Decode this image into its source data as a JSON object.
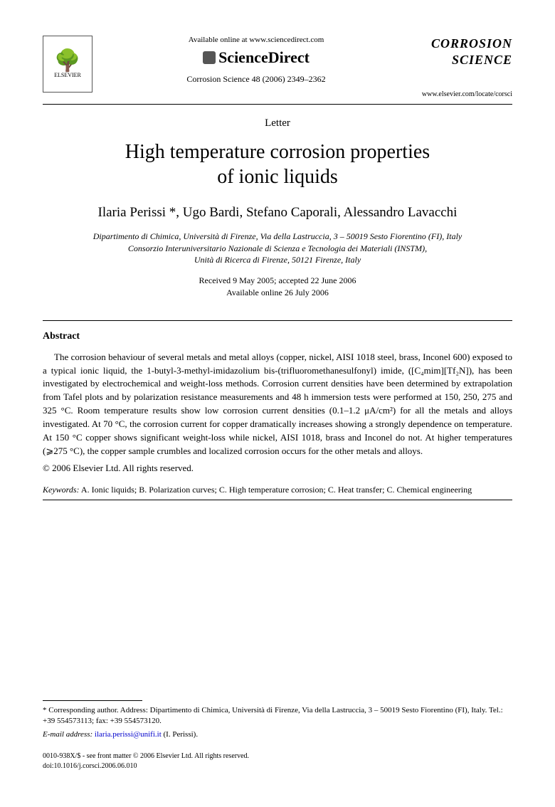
{
  "header": {
    "available_online": "Available online at www.sciencedirect.com",
    "sciencedirect": "ScienceDirect",
    "elsevier_label": "ELSEVIER",
    "journal_ref": "Corrosion Science 48 (2006) 2349–2362",
    "journal_title_line1": "CORROSION",
    "journal_title_line2": "SCIENCE",
    "journal_url": "www.elsevier.com/locate/corsci"
  },
  "article": {
    "type": "Letter",
    "title_line1": "High temperature corrosion properties",
    "title_line2": "of ionic liquids",
    "authors": "Ilaria Perissi *, Ugo Bardi, Stefano Caporali, Alessandro Lavacchi",
    "affiliation_line1": "Dipartimento di Chimica, Università di Firenze, Via della Lastruccia, 3 – 50019 Sesto Fiorentino (FI), Italy",
    "affiliation_line2": "Consorzio Interuniversitario Nazionale di Scienza e Tecnologia dei Materiali (INSTM),",
    "affiliation_line3": "Unità di Ricerca di Firenze, 50121 Firenze, Italy",
    "received": "Received 9 May 2005; accepted 22 June 2006",
    "available": "Available online 26 July 2006"
  },
  "abstract": {
    "heading": "Abstract",
    "text": "The corrosion behaviour of several metals and metal alloys (copper, nickel, AISI 1018 steel, brass, Inconel 600) exposed to a typical ionic liquid, the 1-butyl-3-methyl-imidazolium bis-(trifluoromethanesulfonyl) imide, ([C₄mim][Tf₂N]), has been investigated by electrochemical and weight-loss methods. Corrosion current densities have been determined by extrapolation from Tafel plots and by polarization resistance measurements and 48 h immersion tests were performed at 150, 250, 275 and 325 °C. Room temperature results show low corrosion current densities (0.1–1.2 μA/cm²) for all the metals and alloys investigated. At 70 °C, the corrosion current for copper dramatically increases showing a strongly dependence on temperature. At 150 °C copper shows significant weight-loss while nickel, AISI 1018, brass and Inconel do not. At higher temperatures (⩾275 °C), the copper sample crumbles and localized corrosion occurs for the other metals and alloys.",
    "copyright": "© 2006 Elsevier Ltd. All rights reserved."
  },
  "keywords": {
    "label": "Keywords:",
    "text": "A. Ionic liquids; B. Polarization curves; C. High temperature corrosion; C. Heat transfer; C. Chemical engineering"
  },
  "footnote": {
    "corresponding": "* Corresponding author. Address: Dipartimento di Chimica, Università di Firenze, Via della Lastruccia, 3 – 50019 Sesto Fiorentino (FI), Italy. Tel.: +39 554573113; fax: +39 554573120.",
    "email_label": "E-mail address:",
    "email": "ilaria.perissi@unifi.it",
    "email_suffix": "(I. Perissi)."
  },
  "front_matter": {
    "line1": "0010-938X/$ - see front matter © 2006 Elsevier Ltd. All rights reserved.",
    "line2": "doi:10.1016/j.corsci.2006.06.010"
  }
}
